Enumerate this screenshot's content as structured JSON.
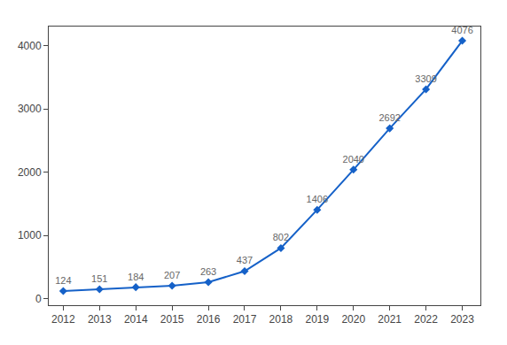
{
  "chart_data": {
    "type": "line",
    "x": [
      2012,
      2013,
      2014,
      2015,
      2016,
      2017,
      2018,
      2019,
      2020,
      2021,
      2022,
      2023
    ],
    "values": [
      124,
      151,
      184,
      207,
      263,
      437,
      802,
      1406,
      2040,
      2692,
      3309,
      4076
    ],
    "color": "#1561c8",
    "marker": "diamond",
    "data_labels": true,
    "xlim": [
      2011.6,
      2023.5
    ],
    "xticks": [
      2012,
      2013,
      2014,
      2015,
      2016,
      2017,
      2018,
      2019,
      2020,
      2021,
      2022,
      2023
    ],
    "ylim": [
      -100,
      4300
    ],
    "yticks": [
      0,
      1000,
      2000,
      3000,
      4000
    ],
    "grid": false
  }
}
